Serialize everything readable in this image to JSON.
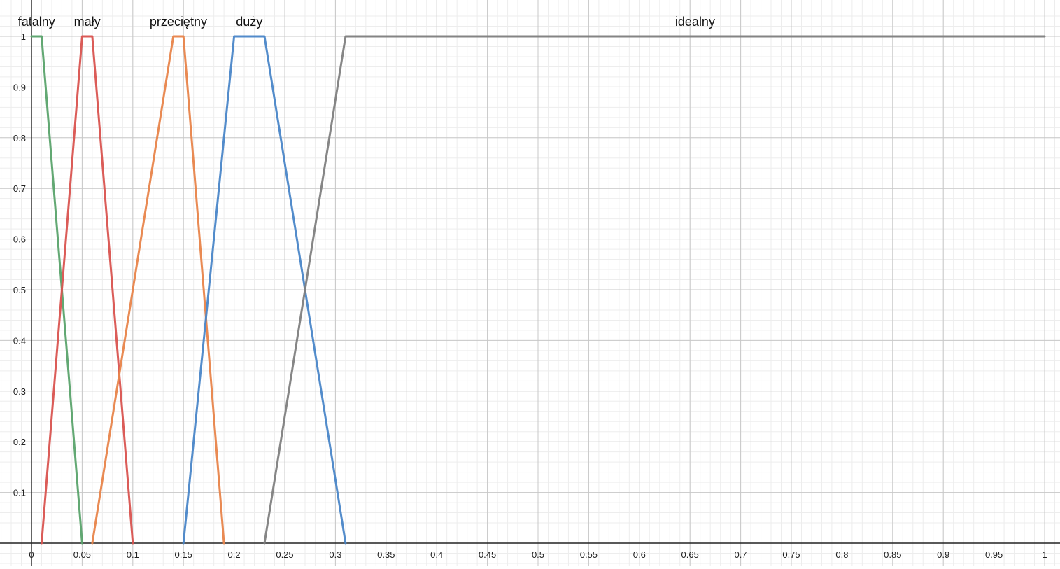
{
  "chart_data": {
    "type": "line",
    "title": "",
    "xlabel": "",
    "ylabel": "",
    "xlim": [
      0,
      1
    ],
    "ylim": [
      0,
      1
    ],
    "grid": true,
    "x_ticks": [
      "0",
      "0.05",
      "0.1",
      "0.15",
      "0.2",
      "0.25",
      "0.3",
      "0.35",
      "0.4",
      "0.45",
      "0.5",
      "0.55",
      "0.6",
      "0.65",
      "0.7",
      "0.75",
      "0.8",
      "0.85",
      "0.9",
      "0.95",
      "1"
    ],
    "y_ticks": [
      "0.1",
      "0.2",
      "0.3",
      "0.4",
      "0.5",
      "0.6",
      "0.7",
      "0.8",
      "0.9",
      "1"
    ],
    "series": [
      {
        "name": "fatalny",
        "color": "#5aa36b",
        "x": [
          0,
          0.01,
          0.05
        ],
        "y": [
          1,
          1,
          0
        ]
      },
      {
        "name": "mały",
        "color": "#d9534f",
        "x": [
          0.01,
          0.05,
          0.06,
          0.1
        ],
        "y": [
          0,
          1,
          1,
          0
        ]
      },
      {
        "name": "przeciętny",
        "color": "#e8844a",
        "x": [
          0.06,
          0.14,
          0.15,
          0.19
        ],
        "y": [
          0,
          1,
          1,
          0
        ]
      },
      {
        "name": "duży",
        "color": "#4a86c8",
        "x": [
          0.15,
          0.2,
          0.23,
          0.31
        ],
        "y": [
          0,
          1,
          1,
          0
        ]
      },
      {
        "name": "idealny",
        "color": "#7f7f7f",
        "x": [
          0.23,
          0.31,
          1
        ],
        "y": [
          0,
          1,
          1
        ]
      }
    ]
  }
}
